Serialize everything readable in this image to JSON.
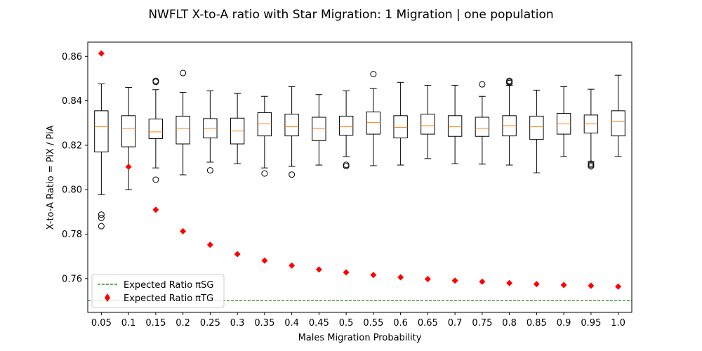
{
  "chart_data": {
    "type": "box",
    "title": "NWFLT X-to-A ratio with Star Migration: 1 Migration | one population",
    "xlabel": "Males Migration Probability",
    "ylabel": "X-to-A Ratio = PiX / PiA",
    "categories": [
      "0.05",
      "0.1",
      "0.15",
      "0.2",
      "0.25",
      "0.3",
      "0.35",
      "0.4",
      "0.45",
      "0.5",
      "0.55",
      "0.6",
      "0.65",
      "0.7",
      "0.75",
      "0.8",
      "0.85",
      "0.9",
      "0.95",
      "1.0"
    ],
    "ylim": [
      0.7448,
      0.8664
    ],
    "yticks": [
      0.76,
      0.78,
      0.8,
      0.82,
      0.84,
      0.86
    ],
    "ytick_labels": [
      "0.76",
      "0.78",
      "0.80",
      "0.82",
      "0.84",
      "0.86"
    ],
    "grid": false,
    "legend_position": "lower-left",
    "colors": {
      "box": "#000000",
      "median": "#ff7f0e",
      "expected_tg": "#ff0000",
      "expected_sg": "#008000"
    },
    "boxes": [
      {
        "whislo": 0.7978,
        "q1": 0.817,
        "med": 0.8284,
        "q3": 0.8355,
        "whishi": 0.8476,
        "fliers": [
          0.7888,
          0.7873,
          0.7836
        ]
      },
      {
        "whislo": 0.8,
        "q1": 0.8193,
        "med": 0.8276,
        "q3": 0.8333,
        "whishi": 0.846,
        "fliers": []
      },
      {
        "whislo": 0.8098,
        "q1": 0.823,
        "med": 0.826,
        "q3": 0.8318,
        "whishi": 0.845,
        "fliers": [
          0.8485,
          0.849,
          0.8045
        ]
      },
      {
        "whislo": 0.8067,
        "q1": 0.8206,
        "med": 0.8276,
        "q3": 0.8331,
        "whishi": 0.8438,
        "fliers": [
          0.8525
        ]
      },
      {
        "whislo": 0.8124,
        "q1": 0.8233,
        "med": 0.8276,
        "q3": 0.832,
        "whishi": 0.8445,
        "fliers": [
          0.8087
        ]
      },
      {
        "whislo": 0.8117,
        "q1": 0.8206,
        "med": 0.8264,
        "q3": 0.8322,
        "whishi": 0.8433,
        "fliers": []
      },
      {
        "whislo": 0.8098,
        "q1": 0.8242,
        "med": 0.8296,
        "q3": 0.8347,
        "whishi": 0.842,
        "fliers": [
          0.8073
        ]
      },
      {
        "whislo": 0.8105,
        "q1": 0.8242,
        "med": 0.8284,
        "q3": 0.834,
        "whishi": 0.8464,
        "fliers": [
          0.8068
        ]
      },
      {
        "whislo": 0.8111,
        "q1": 0.8221,
        "med": 0.8276,
        "q3": 0.8326,
        "whishi": 0.8428,
        "fliers": []
      },
      {
        "whislo": 0.8149,
        "q1": 0.8245,
        "med": 0.8284,
        "q3": 0.8331,
        "whishi": 0.8445,
        "fliers": [
          0.8112,
          0.8106
        ]
      },
      {
        "whislo": 0.8108,
        "q1": 0.825,
        "med": 0.8302,
        "q3": 0.835,
        "whishi": 0.8455,
        "fliers": [
          0.852
        ]
      },
      {
        "whislo": 0.8111,
        "q1": 0.8233,
        "med": 0.828,
        "q3": 0.8333,
        "whishi": 0.8483,
        "fliers": []
      },
      {
        "whislo": 0.814,
        "q1": 0.825,
        "med": 0.8288,
        "q3": 0.834,
        "whishi": 0.847,
        "fliers": []
      },
      {
        "whislo": 0.8117,
        "q1": 0.824,
        "med": 0.8284,
        "q3": 0.8333,
        "whishi": 0.847,
        "fliers": []
      },
      {
        "whislo": 0.8115,
        "q1": 0.824,
        "med": 0.8276,
        "q3": 0.8326,
        "whishi": 0.842,
        "fliers": [
          0.8474
        ]
      },
      {
        "whislo": 0.8111,
        "q1": 0.8242,
        "med": 0.8288,
        "q3": 0.8333,
        "whishi": 0.847,
        "fliers": [
          0.848,
          0.8485,
          0.849
        ]
      },
      {
        "whislo": 0.8076,
        "q1": 0.8226,
        "med": 0.8284,
        "q3": 0.8331,
        "whishi": 0.8448,
        "fliers": []
      },
      {
        "whislo": 0.8149,
        "q1": 0.825,
        "med": 0.8296,
        "q3": 0.8343,
        "whishi": 0.8464,
        "fliers": []
      },
      {
        "whislo": 0.8127,
        "q1": 0.8255,
        "med": 0.8296,
        "q3": 0.8336,
        "whishi": 0.8452,
        "fliers": [
          0.8117,
          0.8111,
          0.8105
        ]
      },
      {
        "whislo": 0.8149,
        "q1": 0.8242,
        "med": 0.8306,
        "q3": 0.8355,
        "whishi": 0.8515,
        "fliers": []
      }
    ],
    "series": [
      {
        "name": "Expected Ratio πTG",
        "type": "scatter",
        "marker": "diamond",
        "values": [
          0.8613,
          0.8103,
          0.791,
          0.7813,
          0.7752,
          0.771,
          0.7681,
          0.7659,
          0.7641,
          0.7628,
          0.7616,
          0.7606,
          0.7598,
          0.7591,
          0.7586,
          0.758,
          0.7575,
          0.7571,
          0.7568,
          0.7564
        ]
      },
      {
        "name": "Expected Ratio πSG",
        "type": "hline",
        "linestyle": "dashed",
        "value": 0.75
      }
    ]
  }
}
